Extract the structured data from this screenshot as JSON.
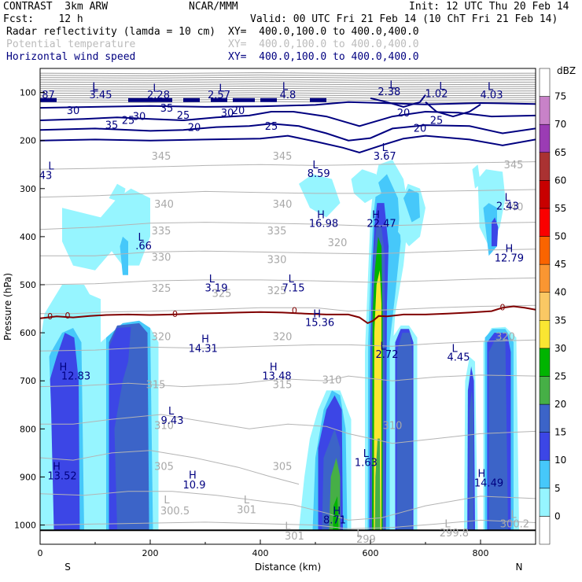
{
  "header": {
    "model": "CONTRAST  3km ARW",
    "org": "NCAR/MMM",
    "init": "Init: 12 UTC Thu 20 Feb 14",
    "fcst": "Fcst:    12 h",
    "valid": "Valid: 00 UTC Fri 21 Feb 14 (10 ChT Fri 21 Feb 14)",
    "fields": [
      {
        "name": "Radar reflectivity (lamda = 10 cm)",
        "xy": "XY=  400.0,100.0 to 400.0,400.0",
        "color": "#000000"
      },
      {
        "name": "Potential temperature",
        "xy": "XY=  400.0,100.0 to 400.0,400.0",
        "color": "#bbbbbb"
      },
      {
        "name": "Horizontal wind speed",
        "xy": "XY=  400.0,100.0 to 400.0,400.0",
        "color": "#000080"
      }
    ]
  },
  "chart_data": {
    "type": "heatmap",
    "xlabel": "Distance (km)",
    "ylabel": "Pressure (hPa)",
    "xlim": [
      0,
      900
    ],
    "ylim": [
      1040,
      50
    ],
    "x_ticks": [
      0,
      200,
      400,
      600,
      800
    ],
    "y_ticks": [
      100,
      200,
      300,
      400,
      500,
      600,
      700,
      800,
      900,
      1000
    ],
    "x_end_labels": {
      "left": "S",
      "right": "N"
    },
    "colorbar": {
      "unit": "dBZ",
      "levels": [
        "0",
        "5",
        "10",
        "15",
        "20",
        "25",
        "30",
        "35",
        "40",
        "45",
        "50",
        "55",
        "60",
        "65",
        "70",
        "75"
      ],
      "colors": [
        "#ffffff",
        "#96f5ff",
        "#46c8fa",
        "#3c46e6",
        "#3c64c8",
        "#46af46",
        "#00b400",
        "#fae632",
        "#fac864",
        "#fa9632",
        "#fa6400",
        "#fa0000",
        "#c80000",
        "#aa3232",
        "#9b3cb4",
        "#c882c8",
        "#ffffff"
      ]
    },
    "wind_contours": [
      "35",
      "30",
      "25",
      "20",
      "35",
      "30",
      "25",
      "20",
      "30",
      "25",
      "20",
      "25",
      "20"
    ],
    "theta_labels": [
      "345",
      "340",
      "335",
      "330",
      "325",
      "320",
      "315",
      "310",
      "305",
      "345",
      "340",
      "335",
      "330",
      "325",
      "320",
      "315",
      "310",
      "305",
      "320",
      "325",
      "345",
      "340",
      "320",
      "310"
    ],
    "zero_label": "0",
    "hl_markers": [
      {
        "t": "L",
        "v": "87"
      },
      {
        "t": "L",
        "v": "3.45"
      },
      {
        "t": "L",
        "v": "2.28"
      },
      {
        "t": "L",
        "v": "2.57"
      },
      {
        "t": "L",
        "v": "4.8"
      },
      {
        "t": "L",
        "v": "2.38"
      },
      {
        "t": "L",
        "v": "1.02"
      },
      {
        "t": "L",
        "v": "4.03"
      },
      {
        "t": "L",
        "v": "3.67"
      },
      {
        "t": "L",
        "v": "8.59"
      },
      {
        "t": "L",
        "v": "43"
      },
      {
        "t": "H",
        "v": "16.98"
      },
      {
        "t": "H",
        "v": "22.47"
      },
      {
        "t": "L",
        "v": "2.43"
      },
      {
        "t": "L",
        "v": ".66"
      },
      {
        "t": "H",
        "v": "12.79"
      },
      {
        "t": "L",
        "v": "3.19"
      },
      {
        "t": "L",
        "v": "7.15"
      },
      {
        "t": "H",
        "v": "15.36"
      },
      {
        "t": "H",
        "v": "14.31"
      },
      {
        "t": "L",
        "v": "2.72"
      },
      {
        "t": "L",
        "v": "4.45"
      },
      {
        "t": "H",
        "v": "12.83"
      },
      {
        "t": "H",
        "v": "13.48"
      },
      {
        "t": "L",
        "v": "9.43"
      },
      {
        "t": "L",
        "v": "1.63"
      },
      {
        "t": "H",
        "v": "13.52"
      },
      {
        "t": "H",
        "v": "10.9"
      },
      {
        "t": "H",
        "v": "14.49"
      },
      {
        "t": "H",
        "v": "8.71"
      }
    ],
    "theta_hl": [
      {
        "t": "L",
        "v": "300.5"
      },
      {
        "t": "L",
        "v": "301"
      },
      {
        "t": "L",
        "v": "301"
      },
      {
        "t": "L",
        "v": "299"
      },
      {
        "t": "L",
        "v": "299.8"
      },
      {
        "t": "L",
        "v": "300.2"
      }
    ]
  }
}
